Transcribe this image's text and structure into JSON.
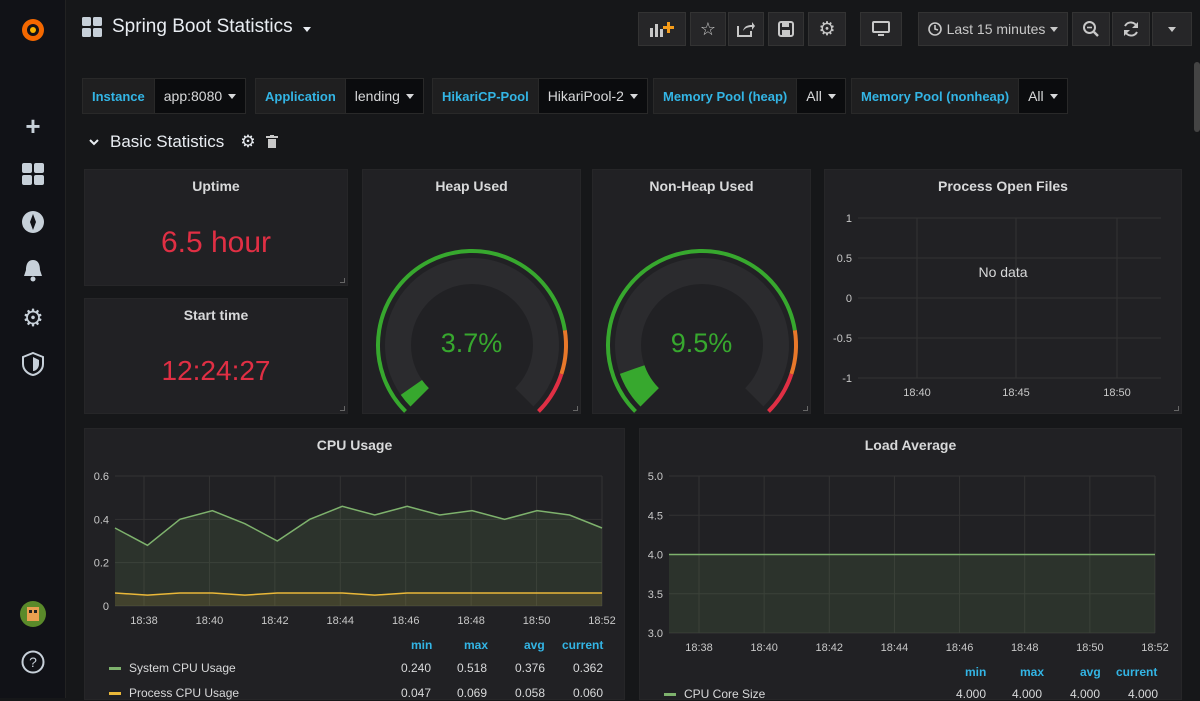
{
  "dashboard": {
    "title": "Spring Boot Statistics"
  },
  "toolbar": {
    "time_range": "Last 15 minutes"
  },
  "variables": [
    {
      "label": "Instance",
      "value": "app:8080"
    },
    {
      "label": "Application",
      "value": "lending"
    },
    {
      "label": "HikariCP-Pool",
      "value": "HikariPool-2"
    },
    {
      "label": "Memory Pool (heap)",
      "value": "All"
    },
    {
      "label": "Memory Pool (nonheap)",
      "value": "All"
    }
  ],
  "row": {
    "title": "Basic Statistics"
  },
  "panels": {
    "uptime": {
      "title": "Uptime",
      "value": "6.5 hour"
    },
    "start_time": {
      "title": "Start time",
      "value": "12:24:27"
    },
    "heap": {
      "title": "Heap Used",
      "value": "3.7%",
      "fraction": 0.037
    },
    "nonheap": {
      "title": "Non-Heap Used",
      "value": "9.5%",
      "fraction": 0.095
    },
    "open_files": {
      "title": "Process Open Files",
      "no_data": "No data",
      "yticks": [
        "1",
        "0.5",
        "0",
        "-0.5",
        "-1"
      ],
      "xticks": [
        "18:40",
        "18:45",
        "18:50"
      ]
    },
    "cpu": {
      "title": "CPU Usage",
      "yticks": [
        "0.6",
        "0.4",
        "0.2",
        "0"
      ],
      "xticks": [
        "18:38",
        "18:40",
        "18:42",
        "18:44",
        "18:46",
        "18:48",
        "18:50",
        "18:52"
      ],
      "legend_headers": [
        "min",
        "max",
        "avg",
        "current"
      ],
      "series": [
        {
          "name": "System CPU Usage",
          "color": "#7eb26d",
          "min": "0.240",
          "max": "0.518",
          "avg": "0.376",
          "current": "0.362"
        },
        {
          "name": "Process CPU Usage",
          "color": "#eab839",
          "min": "0.047",
          "max": "0.069",
          "avg": "0.058",
          "current": "0.060"
        }
      ]
    },
    "load": {
      "title": "Load Average",
      "yticks": [
        "5.0",
        "4.5",
        "4.0",
        "3.5",
        "3.0"
      ],
      "xticks": [
        "18:38",
        "18:40",
        "18:42",
        "18:44",
        "18:46",
        "18:48",
        "18:50",
        "18:52"
      ],
      "legend_headers": [
        "min",
        "max",
        "avg",
        "current"
      ],
      "series": [
        {
          "name": "CPU Core Size",
          "color": "#7eb26d",
          "min": "4.000",
          "max": "4.000",
          "avg": "4.000",
          "current": "4.000"
        }
      ]
    }
  },
  "chart_data": [
    {
      "type": "line",
      "title": "CPU Usage",
      "ylim": [
        0,
        0.6
      ],
      "x": [
        "18:37",
        "18:38",
        "18:39",
        "18:40",
        "18:41",
        "18:42",
        "18:43",
        "18:44",
        "18:45",
        "18:46",
        "18:47",
        "18:48",
        "18:49",
        "18:50",
        "18:51",
        "18:52"
      ],
      "series": [
        {
          "name": "System CPU Usage",
          "values": [
            0.36,
            0.28,
            0.4,
            0.44,
            0.38,
            0.3,
            0.4,
            0.46,
            0.42,
            0.46,
            0.42,
            0.44,
            0.4,
            0.44,
            0.42,
            0.36
          ]
        },
        {
          "name": "Process CPU Usage",
          "values": [
            0.06,
            0.05,
            0.06,
            0.06,
            0.05,
            0.06,
            0.06,
            0.06,
            0.05,
            0.06,
            0.06,
            0.06,
            0.06,
            0.06,
            0.06,
            0.06
          ]
        }
      ]
    },
    {
      "type": "line",
      "title": "Load Average",
      "ylim": [
        3.0,
        5.0
      ],
      "x": [
        "18:37",
        "18:52"
      ],
      "series": [
        {
          "name": "CPU Core Size",
          "values": [
            4.0,
            4.0
          ]
        }
      ]
    }
  ]
}
